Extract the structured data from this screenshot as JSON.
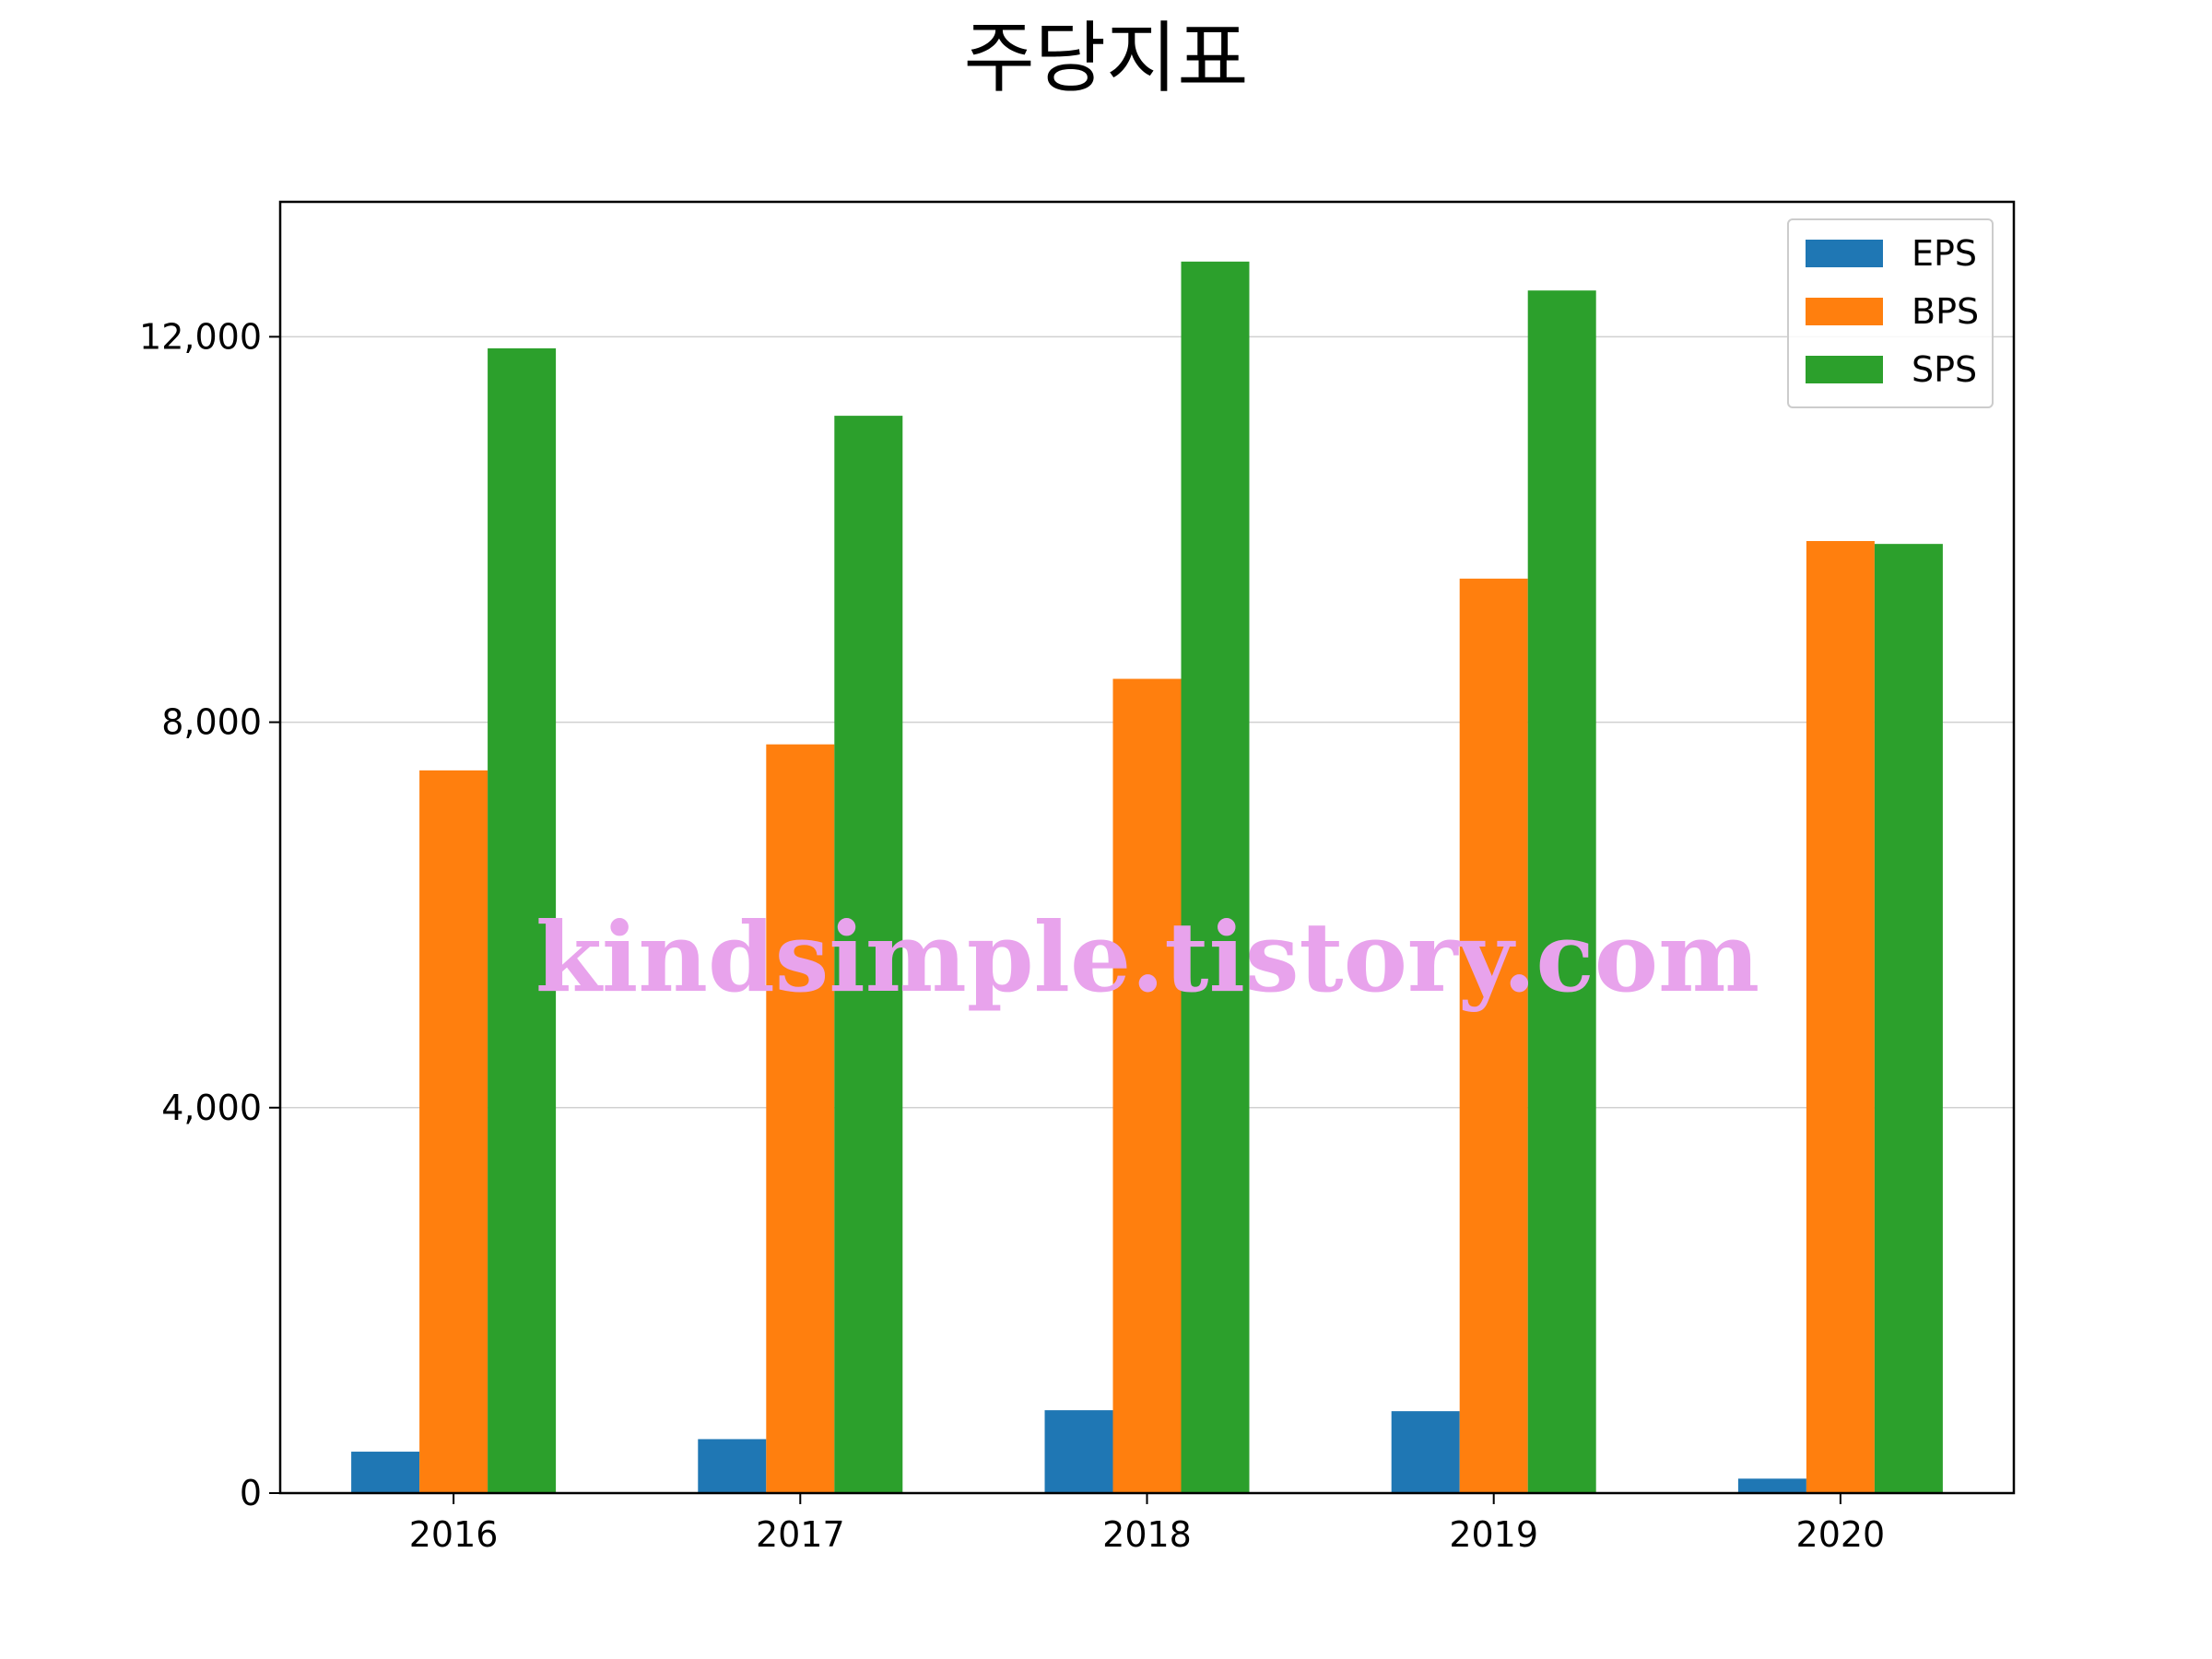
{
  "chart_data": {
    "type": "bar",
    "title": "주당지표",
    "xlabel": "",
    "ylabel": "",
    "categories": [
      "2016",
      "2017",
      "2018",
      "2019",
      "2020"
    ],
    "series": [
      {
        "name": "EPS",
        "color": "#1f77b4",
        "values": [
          430,
          560,
          860,
          850,
          150
        ]
      },
      {
        "name": "BPS",
        "color": "#ff7f0e",
        "values": [
          7500,
          7770,
          8450,
          9490,
          9880
        ]
      },
      {
        "name": "SPS",
        "color": "#2ca02c",
        "values": [
          11880,
          11180,
          12780,
          12480,
          9850
        ]
      }
    ],
    "ylim": [
      0,
      13400
    ],
    "yticks": [
      0,
      4000,
      8000,
      12000
    ],
    "ytick_labels": [
      "0",
      "4,000",
      "8,000",
      "12,000"
    ],
    "grid": "horizontal",
    "legend_position": "top-right",
    "watermark": "kindsimple.tistory.com"
  }
}
